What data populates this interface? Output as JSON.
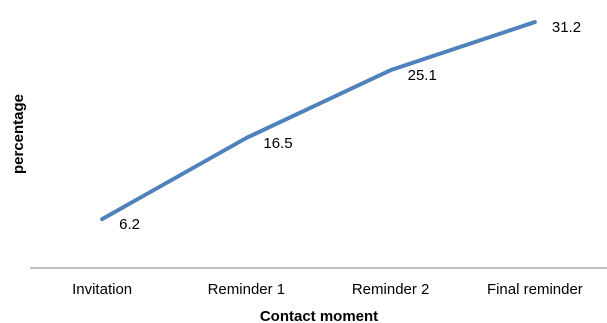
{
  "chart_data": {
    "type": "line",
    "categories": [
      "Invitation",
      "Reminder 1",
      "Reminder 2",
      "Final reminder"
    ],
    "series": [
      {
        "values": [
          6.2,
          16.5,
          25.1,
          31.2
        ],
        "color": "#4F81BD"
      }
    ],
    "data_labels": [
      "6.2",
      "16.5",
      "25.1",
      "31.2"
    ],
    "title": "",
    "xlabel": "Contact moment",
    "ylabel": "percentage",
    "ylim": [
      0,
      34
    ],
    "grid": false,
    "legend": "none"
  }
}
